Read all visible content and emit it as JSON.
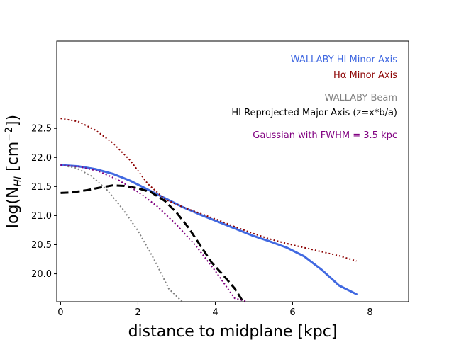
{
  "chart_data": {
    "type": "line",
    "xlabel": "distance to midplane [kpc]",
    "ylabel_parts": [
      "log(N",
      "HI",
      " [cm",
      "−2",
      "])"
    ],
    "xlim": [
      -0.1,
      9.0
    ],
    "ylim": [
      19.52,
      24.0
    ],
    "xticks": [
      0,
      2,
      4,
      6,
      8
    ],
    "yticks": [
      20.0,
      20.5,
      21.0,
      21.5,
      22.0,
      22.5
    ],
    "ytick_labels": [
      "20.0",
      "20.5",
      "21.0",
      "21.5",
      "22.0",
      "22.5"
    ],
    "series": [
      {
        "name": "WALLABY HI Minor Axis",
        "color": "#4169e1",
        "style": "solid",
        "x": [
          0.0,
          0.45,
          0.9,
          1.35,
          1.8,
          2.25,
          2.7,
          3.15,
          3.6,
          4.05,
          4.5,
          4.95,
          5.4,
          5.85,
          6.3,
          6.75,
          7.2,
          7.65
        ],
        "y": [
          21.87,
          21.85,
          21.8,
          21.72,
          21.6,
          21.45,
          21.3,
          21.15,
          21.02,
          20.9,
          20.78,
          20.66,
          20.56,
          20.45,
          20.3,
          20.07,
          19.8,
          19.65
        ]
      },
      {
        "name": "Hα Minor Axis",
        "color": "#8b0000",
        "style": "dotted",
        "x": [
          0.0,
          0.45,
          0.9,
          1.35,
          1.8,
          2.25,
          2.7,
          3.15,
          3.6,
          4.05,
          4.5,
          4.95,
          5.4,
          5.85,
          6.3,
          6.75,
          7.2,
          7.65
        ],
        "y": [
          22.67,
          22.62,
          22.47,
          22.25,
          21.95,
          21.55,
          21.28,
          21.15,
          21.04,
          20.93,
          20.81,
          20.7,
          20.6,
          20.52,
          20.45,
          20.38,
          20.31,
          20.22
        ]
      },
      {
        "name": "WALLABY Beam",
        "color": "#808080",
        "style": "dotted",
        "x": [
          0.0,
          0.4,
          0.8,
          1.2,
          1.6,
          2.0,
          2.4,
          2.8,
          3.15
        ],
        "y": [
          21.87,
          21.82,
          21.68,
          21.44,
          21.12,
          20.74,
          20.27,
          19.74,
          19.52
        ]
      },
      {
        "name": "HI Reprojected Major Axis (z=x*b/a)",
        "color": "#000000",
        "style": "dashed",
        "x": [
          0.0,
          0.3,
          0.7,
          1.0,
          1.35,
          1.65,
          2.0,
          2.35,
          2.7,
          3.0,
          3.3,
          3.6,
          3.9,
          4.2,
          4.5,
          4.72
        ],
        "y": [
          21.39,
          21.4,
          21.44,
          21.48,
          21.52,
          21.51,
          21.47,
          21.4,
          21.25,
          21.05,
          20.8,
          20.5,
          20.2,
          19.98,
          19.75,
          19.52
        ]
      },
      {
        "name": "Gaussian with FWHM = 3.5 kpc",
        "color": "#800080",
        "style": "dotted",
        "x": [
          0.0,
          0.5,
          1.0,
          1.5,
          2.0,
          2.5,
          3.0,
          3.5,
          4.0,
          4.5,
          4.85
        ],
        "y": [
          21.87,
          21.84,
          21.76,
          21.61,
          21.41,
          21.16,
          20.84,
          20.48,
          20.05,
          19.58,
          19.52
        ]
      }
    ]
  }
}
